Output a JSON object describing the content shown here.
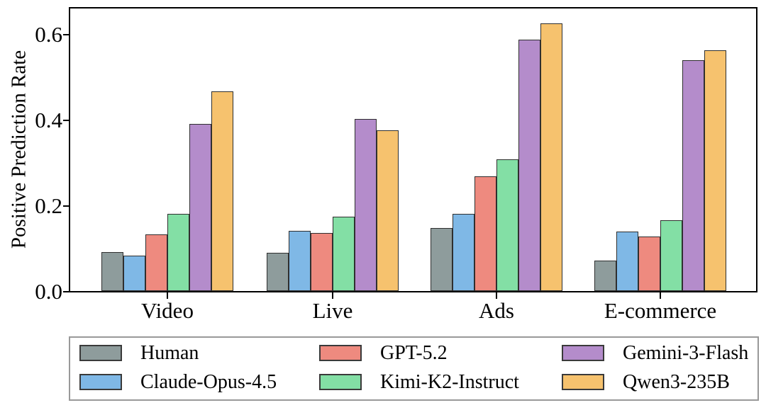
{
  "chart_data": {
    "type": "bar",
    "title": "",
    "xlabel": "",
    "ylabel": "Positive Prediction Rate",
    "categories": [
      "Video",
      "Live",
      "Ads",
      "E-commerce"
    ],
    "series": [
      {
        "name": "Human",
        "color": "#8e9c9c",
        "values": [
          0.091,
          0.089,
          0.148,
          0.071
        ]
      },
      {
        "name": "Claude-Opus-4.5",
        "color": "#7fb8e6",
        "values": [
          0.082,
          0.141,
          0.181,
          0.139
        ]
      },
      {
        "name": "GPT-5.2",
        "color": "#ee8a7f",
        "values": [
          0.132,
          0.135,
          0.268,
          0.128
        ]
      },
      {
        "name": "Kimi-K2-Instruct",
        "color": "#83dfa5",
        "values": [
          0.18,
          0.174,
          0.307,
          0.165
        ]
      },
      {
        "name": "Gemini-3-Flash",
        "color": "#b48ccb",
        "values": [
          0.39,
          0.402,
          0.588,
          0.54
        ]
      },
      {
        "name": "Qwen3-235B",
        "color": "#f6c26e",
        "values": [
          0.466,
          0.375,
          0.625,
          0.562
        ]
      }
    ],
    "y_tick_labels": [
      "0.0",
      "0.2",
      "0.4",
      "0.6"
    ],
    "y_tick_values": [
      0.0,
      0.2,
      0.4,
      0.6
    ],
    "ylim": [
      0,
      0.66
    ],
    "grid": false,
    "legend_position": "bottom",
    "legend_columns": 3,
    "bar_edge_color": "#2f2f2f",
    "axis_color": "#000000",
    "legend_border_color": "#999999"
  }
}
